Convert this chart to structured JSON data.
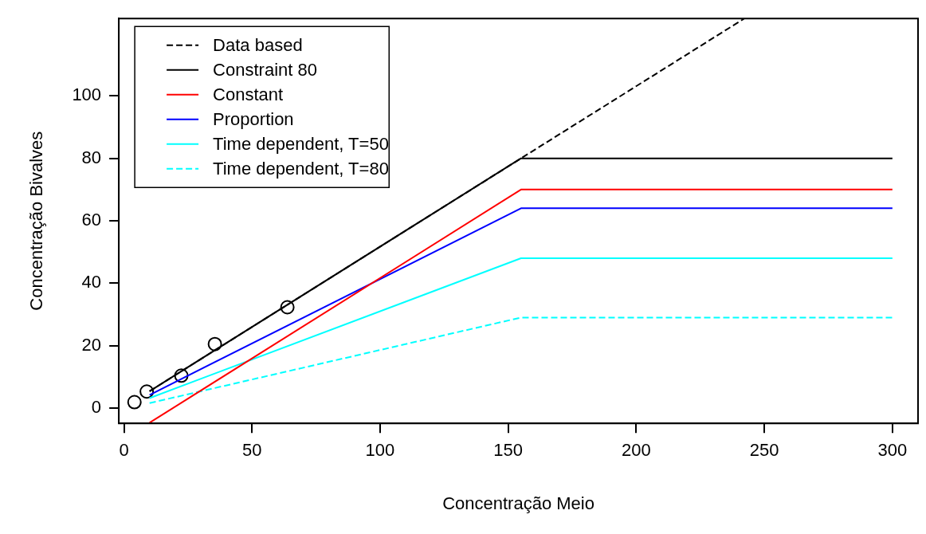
{
  "chart_data": {
    "type": "line",
    "xlabel": "Concentração Meio",
    "ylabel": "Concentração Bivalves",
    "xlim": [
      -2,
      310
    ],
    "ylim": [
      -4.9,
      124.8
    ],
    "xticks": [
      0,
      50,
      100,
      150,
      200,
      250,
      300
    ],
    "yticks": [
      0,
      20,
      40,
      60,
      80,
      100
    ],
    "grid": false,
    "legend": "top left",
    "series": [
      {
        "name": "Data based",
        "color": "#000000",
        "type": "line",
        "line_style": "dashed",
        "marker": "none",
        "x": [
          10,
          155,
          242
        ],
        "values": [
          5.4,
          80,
          124.7
        ]
      },
      {
        "name": "Constraint 80",
        "color": "#000000",
        "type": "line",
        "line_style": "solid",
        "marker": "none",
        "x": [
          10,
          155,
          300
        ],
        "values": [
          5.4,
          80,
          80
        ]
      },
      {
        "name": "Constant",
        "color": "#ff0000",
        "type": "line",
        "line_style": "solid",
        "marker": "none",
        "x": [
          10,
          155,
          300
        ],
        "values": [
          -4.7,
          70,
          70
        ]
      },
      {
        "name": "Proportion",
        "color": "#0000ff",
        "type": "line",
        "line_style": "solid",
        "marker": "none",
        "x": [
          10,
          155,
          300
        ],
        "values": [
          4.2,
          64,
          64
        ]
      },
      {
        "name": "Time dependent, T=50",
        "color": "#00ffff",
        "type": "line",
        "line_style": "solid",
        "marker": "none",
        "x": [
          10,
          155,
          300
        ],
        "values": [
          3.2,
          48,
          48
        ]
      },
      {
        "name": "Time dependent, T=80",
        "color": "#00ffff",
        "type": "line",
        "line_style": "dashed",
        "marker": "none",
        "x": [
          10,
          155,
          300
        ],
        "values": [
          1.6,
          29,
          29
        ]
      },
      {
        "color": "#000000",
        "type": "scatter",
        "marker": "circle",
        "x": [
          4.1,
          8.9,
          22.4,
          35.5,
          63.8
        ],
        "values": [
          1.9,
          5.3,
          10.4,
          20.5,
          32.3
        ]
      }
    ]
  }
}
